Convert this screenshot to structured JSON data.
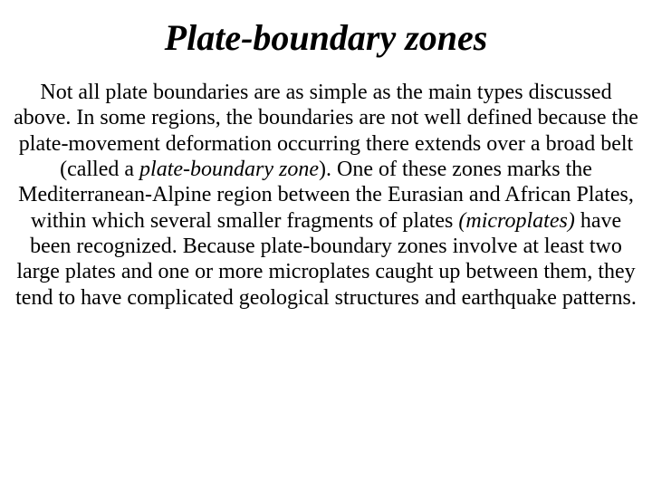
{
  "slide": {
    "background_color": "#ffffff",
    "text_color": "#000000",
    "font_family": "Times New Roman",
    "title": {
      "text": "Plate-boundary zones",
      "font_size_pt": 40,
      "font_weight": "bold",
      "font_style": "italic"
    },
    "body": {
      "font_size_pt": 24,
      "segments": {
        "s1": "Not all plate boundaries are as simple as the main types discussed above. In some regions, the boundaries are not well defined because the plate-movement deformation occurring there extends over a broad belt (called a ",
        "s2_ital": "plate-boundary zone",
        "s3": "). One of these zones marks the Mediterranean-Alpine region between the Eurasian and African Plates, within which several smaller fragments of plates ",
        "s4_ital": "(microplates)",
        "s5": " have been recognized. Because plate-boundary zones involve at least two large plates and one or more microplates caught up between them, they tend to have complicated geological structures and earthquake patterns."
      }
    }
  }
}
